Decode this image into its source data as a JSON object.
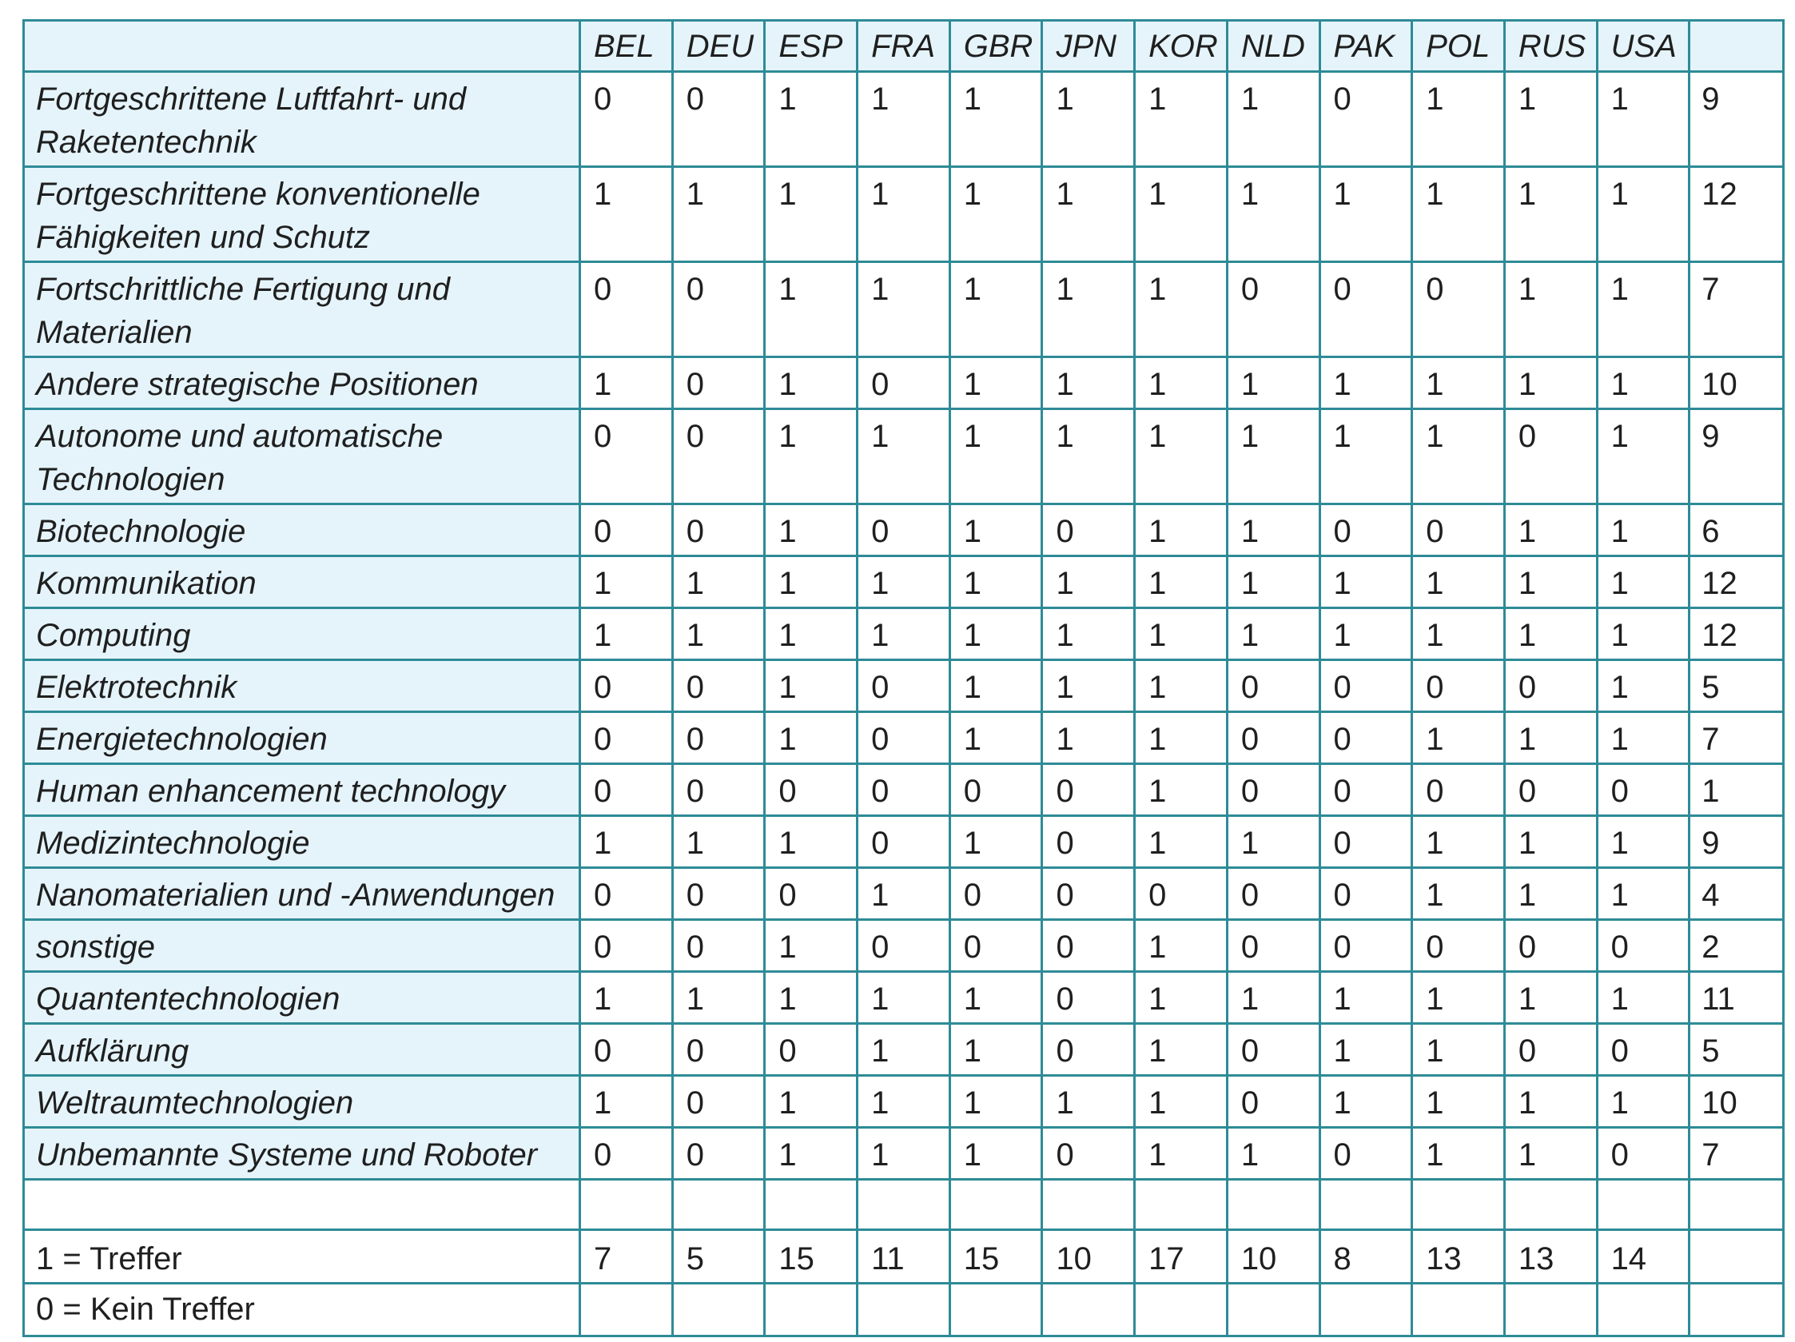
{
  "countries": [
    "BEL",
    "DEU",
    "ESP",
    "FRA",
    "GBR",
    "JPN",
    "KOR",
    "NLD",
    "PAK",
    "POL",
    "RUS",
    "USA"
  ],
  "rows": [
    {
      "label": "Fortgeschrittene Luftfahrt- und Raketentechnik",
      "values": [
        0,
        0,
        1,
        1,
        1,
        1,
        1,
        1,
        0,
        1,
        1,
        1
      ],
      "total": 9
    },
    {
      "label": "Fortgeschrittene konventionelle Fähigkeiten und Schutz",
      "values": [
        1,
        1,
        1,
        1,
        1,
        1,
        1,
        1,
        1,
        1,
        1,
        1
      ],
      "total": 12
    },
    {
      "label": "Fortschrittliche Fertigung und Materialien",
      "values": [
        0,
        0,
        1,
        1,
        1,
        1,
        1,
        0,
        0,
        0,
        1,
        1
      ],
      "total": 7
    },
    {
      "label": "Andere strategische Positionen",
      "values": [
        1,
        0,
        1,
        0,
        1,
        1,
        1,
        1,
        1,
        1,
        1,
        1
      ],
      "total": 10
    },
    {
      "label": "Autonome und automatische Technologien",
      "values": [
        0,
        0,
        1,
        1,
        1,
        1,
        1,
        1,
        1,
        1,
        0,
        1
      ],
      "total": 9
    },
    {
      "label": "Biotechnologie",
      "values": [
        0,
        0,
        1,
        0,
        1,
        0,
        1,
        1,
        0,
        0,
        1,
        1
      ],
      "total": 6
    },
    {
      "label": "Kommunikation",
      "values": [
        1,
        1,
        1,
        1,
        1,
        1,
        1,
        1,
        1,
        1,
        1,
        1
      ],
      "total": 12
    },
    {
      "label": "Computing",
      "values": [
        1,
        1,
        1,
        1,
        1,
        1,
        1,
        1,
        1,
        1,
        1,
        1
      ],
      "total": 12
    },
    {
      "label": "Elektrotechnik",
      "values": [
        0,
        0,
        1,
        0,
        1,
        1,
        1,
        0,
        0,
        0,
        0,
        1
      ],
      "total": 5
    },
    {
      "label": "Energietechnologien",
      "values": [
        0,
        0,
        1,
        0,
        1,
        1,
        1,
        0,
        0,
        1,
        1,
        1
      ],
      "total": 7
    },
    {
      "label": "Human enhancement technology",
      "values": [
        0,
        0,
        0,
        0,
        0,
        0,
        1,
        0,
        0,
        0,
        0,
        0
      ],
      "total": 1
    },
    {
      "label": "Medizintechnologie",
      "values": [
        1,
        1,
        1,
        0,
        1,
        0,
        1,
        1,
        0,
        1,
        1,
        1
      ],
      "total": 9
    },
    {
      "label": "Nanomaterialien und -Anwendungen",
      "values": [
        0,
        0,
        0,
        1,
        0,
        0,
        0,
        0,
        0,
        1,
        1,
        1
      ],
      "total": 4
    },
    {
      "label": "sonstige",
      "values": [
        0,
        0,
        1,
        0,
        0,
        0,
        1,
        0,
        0,
        0,
        0,
        0
      ],
      "total": 2
    },
    {
      "label": "Quantentechnologien",
      "values": [
        1,
        1,
        1,
        1,
        1,
        0,
        1,
        1,
        1,
        1,
        1,
        1
      ],
      "total": 11
    },
    {
      "label": "Aufklärung",
      "values": [
        0,
        0,
        0,
        1,
        1,
        0,
        1,
        0,
        1,
        1,
        0,
        0
      ],
      "total": 5
    },
    {
      "label": "Weltraumtechnologien",
      "values": [
        1,
        0,
        1,
        1,
        1,
        1,
        1,
        0,
        1,
        1,
        1,
        1
      ],
      "total": 10
    },
    {
      "label": "Unbemannte Systeme und Roboter",
      "values": [
        0,
        0,
        1,
        1,
        1,
        0,
        1,
        1,
        0,
        1,
        1,
        0
      ],
      "total": 7
    }
  ],
  "column_totals": [
    7,
    5,
    15,
    11,
    15,
    10,
    17,
    10,
    8,
    13,
    13,
    14
  ],
  "legend": {
    "hit": "1 = Treffer",
    "no_hit": "0 = Kein Treffer"
  },
  "colors": {
    "border": "#2e8b97",
    "label_background": "#e5f4fb",
    "text": "#1f1f1f"
  }
}
